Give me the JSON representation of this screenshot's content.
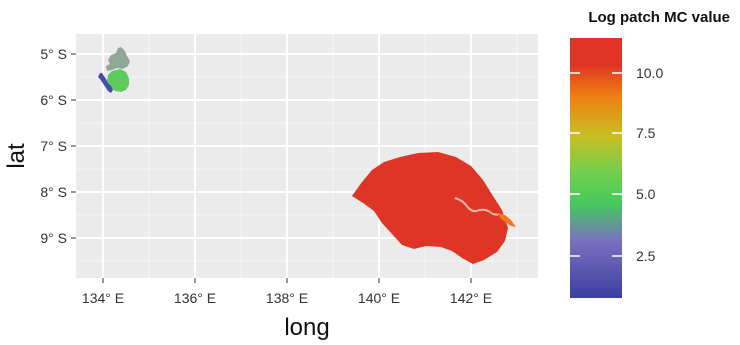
{
  "map": {
    "x_axis_title": "long",
    "y_axis_title": "lat",
    "x_ticks": [
      "134° E",
      "136° E",
      "138° E",
      "140° E",
      "142° E"
    ],
    "y_ticks": [
      "5° S",
      "6° S",
      "7° S",
      "8° S",
      "9° S"
    ],
    "legend": {
      "title": "Log patch MC value",
      "ticks": [
        "10.0",
        "7.5",
        "5.0",
        "2.5"
      ],
      "color_stops": [
        "#3b3fa0",
        "#7b70c0",
        "#46c95e",
        "#6fcf4e",
        "#c8c023",
        "#ee7e12",
        "#e03426"
      ]
    },
    "regions": [
      {
        "name": "northwest-islands-north",
        "color": "#8fa89a"
      },
      {
        "name": "northwest-islands-center",
        "color": "#5ecb5e"
      },
      {
        "name": "northwest-islands-west",
        "color": "#4a4aa8"
      },
      {
        "name": "southern-landmass",
        "color": "#df3526"
      },
      {
        "name": "southeast-inlet",
        "color": "#f0771c"
      }
    ]
  }
}
